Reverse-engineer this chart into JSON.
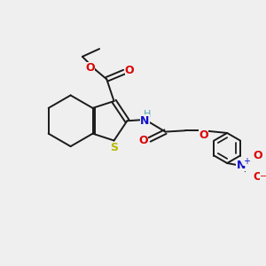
{
  "bg_color": "#efefef",
  "bond_color": "#1a1a1a",
  "S_color": "#b8b800",
  "O_color": "#dd0000",
  "N_color": "#1010cc",
  "H_color": "#4da6a6",
  "figsize": [
    3.0,
    3.0
  ],
  "dpi": 100,
  "xlim": [
    0,
    10
  ],
  "ylim": [
    0,
    10
  ]
}
